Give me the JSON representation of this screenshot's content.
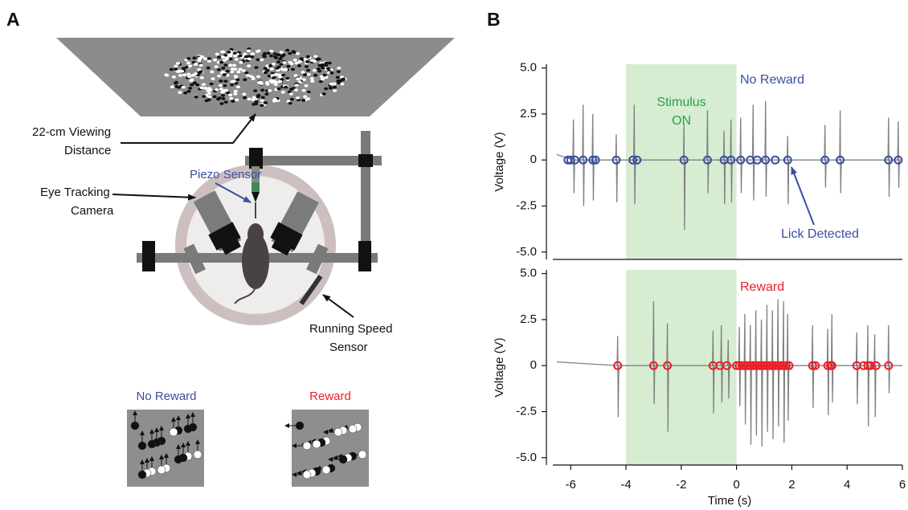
{
  "panels": [
    "A",
    "B"
  ],
  "diagram": {
    "viewing_distance": [
      "22-cm Viewing",
      "Distance"
    ],
    "piezo_sensor": "Piezo Sensor",
    "eye_tracking_camera": [
      "Eye Tracking",
      "Camera"
    ],
    "running_speed_sensor": [
      "Running Speed",
      "Sensor"
    ],
    "no_reward": "No Reward",
    "reward": "Reward"
  },
  "chart_data": [
    {
      "type": "line",
      "ylabel": "Voltage (V)",
      "annotations": [
        "Stimulus",
        "ON",
        "No Reward",
        "Lick Detected"
      ],
      "xlim": [
        -6.5,
        6
      ],
      "ylim": [
        -5.4,
        5.2
      ],
      "yticks": [
        {
          "value": 5,
          "label": "5.0"
        },
        2.5,
        0,
        -2.5,
        {
          "value": -5,
          "label": "-5.0"
        }
      ],
      "span": [
        -4,
        0
      ],
      "span_color": "#d6edd2",
      "series": [
        {
          "color": "#808080",
          "x": [
            -6.5,
            -5.92,
            -5.9,
            -5.88,
            -5.86,
            -5.57,
            -5.55,
            -5.53,
            -5.51,
            -5.22,
            -5.2,
            -5.18,
            -5.16,
            -4.37,
            -4.35,
            -4.33,
            -4.31,
            -3.72,
            -3.7,
            -3.68,
            -3.66,
            -1.92,
            -1.9,
            -1.88,
            -1.86,
            -1.07,
            -1.05,
            -1.03,
            -1.01,
            -0.47,
            -0.45,
            -0.43,
            -0.41,
            -0.22,
            -0.2,
            -0.18,
            -0.16,
            0.13,
            0.15,
            0.17,
            0.19,
            0.58,
            0.6,
            0.62,
            0.64,
            1.03,
            1.05,
            1.07,
            1.09,
            1.83,
            1.85,
            1.87,
            1.89,
            3.18,
            3.2,
            3.22,
            3.24,
            3.73,
            3.75,
            3.77,
            3.79,
            5.48,
            5.5,
            5.52,
            5.54,
            5.83,
            5.85,
            5.87,
            5.89,
            6
          ],
          "values": [
            0.3,
            0,
            2.2,
            -1.8,
            0,
            0,
            3.0,
            -2.5,
            0,
            0,
            2.5,
            -2.2,
            0,
            0,
            1.4,
            -2.3,
            0,
            0,
            3.0,
            -2.4,
            0,
            0,
            2.0,
            -3.8,
            0,
            0,
            2.7,
            -1.8,
            0,
            0,
            1.6,
            -2.4,
            0,
            0,
            2.2,
            -2.3,
            0,
            0,
            2.3,
            -1.8,
            0,
            0,
            3.0,
            -2.2,
            0,
            0,
            3.2,
            -2.0,
            0,
            0,
            1.3,
            -2.4,
            0,
            0,
            1.9,
            -1.5,
            0,
            0,
            2.7,
            -1.8,
            0,
            0,
            2.3,
            -2.0,
            0,
            0,
            2.1,
            -1.5,
            0,
            0
          ]
        },
        {
          "color": "#3a4fa0",
          "marker": "circle",
          "x": [
            -6.1,
            -6.0,
            -5.85,
            -5.55,
            -5.2,
            -5.1,
            -4.35,
            -3.75,
            -3.6,
            -1.9,
            -1.05,
            -0.45,
            -0.2,
            0.15,
            0.5,
            0.75,
            1.05,
            1.4,
            1.85,
            3.2,
            3.75,
            5.5,
            5.85
          ],
          "values": [
            0,
            0,
            0,
            0,
            0,
            0,
            0,
            0,
            0,
            0,
            0,
            0,
            0,
            0,
            0,
            0,
            0,
            0,
            0,
            0,
            0,
            0,
            0
          ]
        }
      ]
    },
    {
      "type": "line",
      "ylabel": "Voltage (V)",
      "xlabel": "Time (s)",
      "annotations": [
        "Reward"
      ],
      "xlim": [
        -6.5,
        6
      ],
      "ylim": [
        -5.4,
        5.2
      ],
      "xticks": [
        -6,
        -4,
        -2,
        0,
        2,
        4,
        6
      ],
      "yticks": [
        {
          "value": 5,
          "label": "5.0"
        },
        2.5,
        0,
        -2.5,
        {
          "value": -5,
          "label": "-5.0"
        }
      ],
      "span": [
        -4,
        0
      ],
      "span_color": "#d6edd2",
      "series": [
        {
          "color": "#808080",
          "x": [
            -6.5,
            -4.32,
            -4.3,
            -4.28,
            -4.26,
            -3.02,
            -3.0,
            -2.98,
            -2.96,
            -2.52,
            -2.5,
            -2.48,
            -2.46,
            -0.87,
            -0.85,
            -0.83,
            -0.81,
            -0.57,
            -0.55,
            -0.53,
            -0.51,
            -0.32,
            -0.3,
            -0.28,
            -0.26,
            0.08,
            0.1,
            0.12,
            0.14,
            0.28,
            0.3,
            0.32,
            0.34,
            0.48,
            0.5,
            0.52,
            0.54,
            0.68,
            0.7,
            0.72,
            0.74,
            0.88,
            0.9,
            0.92,
            0.94,
            1.08,
            1.1,
            1.12,
            1.14,
            1.28,
            1.3,
            1.32,
            1.34,
            1.48,
            1.5,
            1.52,
            1.54,
            1.68,
            1.7,
            1.72,
            1.74,
            1.83,
            1.85,
            1.87,
            1.89,
            2.73,
            2.75,
            2.77,
            2.79,
            3.28,
            3.3,
            3.32,
            3.34,
            3.43,
            3.45,
            3.47,
            3.49,
            4.33,
            4.35,
            4.37,
            4.39,
            4.73,
            4.75,
            4.77,
            4.79,
            4.98,
            5.0,
            5.02,
            5.04,
            5.48,
            5.5,
            5.52,
            5.54,
            6
          ],
          "values": [
            0.2,
            0,
            1.6,
            -2.8,
            0,
            0,
            3.5,
            -2.1,
            0,
            0,
            2.3,
            -3.6,
            0,
            0,
            1.9,
            -2.6,
            0,
            0,
            2.2,
            -2.0,
            0,
            0,
            1.4,
            -1.8,
            0,
            0,
            2.1,
            -2.2,
            0,
            0,
            2.8,
            -3.2,
            0,
            0,
            2.2,
            -4.3,
            0,
            0,
            3.0,
            -3.8,
            0,
            0,
            2.5,
            -4.4,
            0,
            0,
            3.3,
            -3.6,
            0,
            0,
            3.0,
            -4.0,
            0,
            0,
            3.6,
            -3.3,
            0,
            0,
            3.5,
            -4.2,
            0,
            0,
            2.8,
            -3.0,
            0,
            0,
            2.2,
            -2.3,
            0,
            0,
            2.0,
            -2.7,
            0,
            0,
            2.8,
            -2.0,
            0,
            0,
            1.8,
            -2.1,
            0,
            0,
            2.2,
            -3.3,
            0,
            0,
            1.7,
            -2.8,
            0,
            0,
            2.2,
            -1.5,
            0,
            0
          ]
        },
        {
          "color": "#e8202a",
          "marker": "circle",
          "x": [
            -4.3,
            -3.0,
            -2.5,
            -0.85,
            -0.6,
            -0.35,
            0.0,
            0.1,
            0.2,
            0.3,
            0.4,
            0.5,
            0.6,
            0.7,
            0.8,
            0.9,
            1.0,
            1.1,
            1.2,
            1.3,
            1.4,
            1.5,
            1.6,
            1.7,
            1.8,
            1.9,
            2.75,
            2.85,
            3.3,
            3.4,
            3.45,
            4.35,
            4.6,
            4.75,
            4.85,
            5.05,
            5.5
          ],
          "values": [
            0,
            0,
            0,
            0,
            0,
            0,
            0,
            0,
            0,
            0,
            0,
            0,
            0,
            0,
            0,
            0,
            0,
            0,
            0,
            0,
            0,
            0,
            0,
            0,
            0,
            0,
            0,
            0,
            0,
            0,
            0,
            0,
            0,
            0,
            0,
            0,
            0
          ]
        }
      ]
    }
  ]
}
